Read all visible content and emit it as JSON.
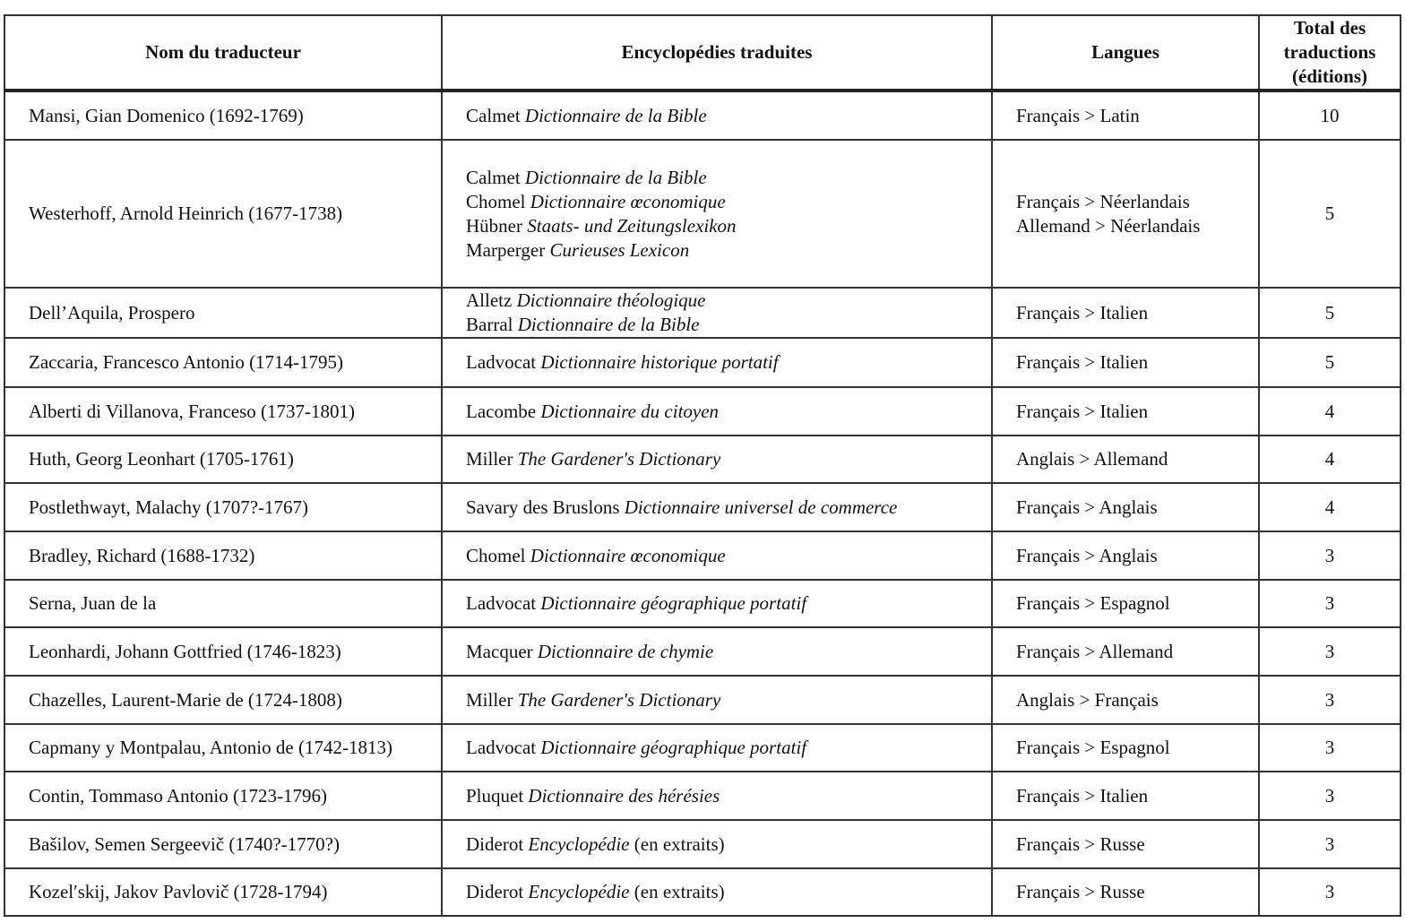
{
  "headers": {
    "name": "Nom du traducteur",
    "encyclopedias": "Encyclopédies traduites",
    "languages": "Langues",
    "total": "Total des traductions (éditions)"
  },
  "rows": [
    {
      "name": "Mansi, Gian Domenico (1692-1769)",
      "encyclopedias": [
        {
          "author": "Calmet",
          "title": "Dictionnaire de la Bible",
          "suffix": ""
        }
      ],
      "languages": [
        "Français > Latin"
      ],
      "total": "10"
    },
    {
      "name": "Westerhoff, Arnold Heinrich (1677-1738)",
      "encyclopedias": [
        {
          "author": "Calmet",
          "title": "Dictionnaire de la Bible",
          "suffix": ""
        },
        {
          "author": "Chomel",
          "title": "Dictionnaire œconomique",
          "suffix": ""
        },
        {
          "author": "Hübner",
          "title": "Staats- und Zeitungslexikon",
          "suffix": ""
        },
        {
          "author": "Marperger",
          "title": "Curieuses Lexicon",
          "suffix": ""
        }
      ],
      "languages": [
        "Français > Néerlandais",
        "Allemand > Néerlandais"
      ],
      "total": "5"
    },
    {
      "name": "Dell’Aquila, Prospero",
      "encyclopedias": [
        {
          "author": "Alletz",
          "title": "Dictionnaire théologique",
          "suffix": ""
        },
        {
          "author": "Barral",
          "title": "Dictionnaire de la Bible",
          "suffix": ""
        }
      ],
      "languages": [
        "Français > Italien"
      ],
      "total": "5"
    },
    {
      "name": "Zaccaria, Francesco Antonio (1714-1795)",
      "encyclopedias": [
        {
          "author": "Ladvocat",
          "title": "Dictionnaire historique portatif",
          "suffix": ""
        }
      ],
      "languages": [
        "Français > Italien"
      ],
      "total": "5"
    },
    {
      "name": "Alberti di Villanova, Franceso (1737-1801)",
      "encyclopedias": [
        {
          "author": "Lacombe",
          "title": "Dictionnaire du citoyen",
          "suffix": ""
        }
      ],
      "languages": [
        "Français > Italien"
      ],
      "total": "4"
    },
    {
      "name": "Huth, Georg Leonhart (1705-1761)",
      "encyclopedias": [
        {
          "author": "Miller",
          "title": "The Gardener's Dictionary",
          "suffix": ""
        }
      ],
      "languages": [
        "Anglais > Allemand"
      ],
      "total": "4"
    },
    {
      "name": "Postlethwayt, Malachy (1707?-1767)",
      "encyclopedias": [
        {
          "author": "Savary des Bruslons",
          "title": "Dictionnaire universel de commerce",
          "suffix": ""
        }
      ],
      "languages": [
        "Français > Anglais"
      ],
      "total": "4"
    },
    {
      "name": "Bradley, Richard (1688-1732)",
      "encyclopedias": [
        {
          "author": "Chomel",
          "title": "Dictionnaire œconomique",
          "suffix": ""
        }
      ],
      "languages": [
        "Français > Anglais"
      ],
      "total": "3"
    },
    {
      "name": "Serna, Juan de la",
      "encyclopedias": [
        {
          "author": "Ladvocat",
          "title": "Dictionnaire géographique portatif",
          "suffix": ""
        }
      ],
      "languages": [
        "Français > Espagnol"
      ],
      "total": "3"
    },
    {
      "name": "Leonhardi, Johann Gottfried (1746-1823)",
      "encyclopedias": [
        {
          "author": "Macquer",
          "title": "Dictionnaire de chymie",
          "suffix": ""
        }
      ],
      "languages": [
        "Français > Allemand"
      ],
      "total": "3"
    },
    {
      "name": "Chazelles, Laurent-Marie de (1724-1808)",
      "encyclopedias": [
        {
          "author": "Miller",
          "title": "The Gardener's Dictionary",
          "suffix": ""
        }
      ],
      "languages": [
        "Anglais > Français"
      ],
      "total": "3"
    },
    {
      "name": "Capmany y Montpalau, Antonio de (1742-1813)",
      "encyclopedias": [
        {
          "author": "Ladvocat",
          "title": "Dictionnaire géographique portatif",
          "suffix": ""
        }
      ],
      "languages": [
        "Français > Espagnol"
      ],
      "total": "3"
    },
    {
      "name": "Contin, Tommaso Antonio (1723-1796)",
      "encyclopedias": [
        {
          "author": "Pluquet",
          "title": "Dictionnaire des hérésies",
          "suffix": ""
        }
      ],
      "languages": [
        "Français > Italien"
      ],
      "total": "3"
    },
    {
      "name": "Bašilov, Semen Sergeevič (1740?-1770?)",
      "encyclopedias": [
        {
          "author": "Diderot",
          "title": "Encyclopédie",
          "suffix": "(en extraits)"
        }
      ],
      "languages": [
        "Français > Russe"
      ],
      "total": "3"
    },
    {
      "name": "Kozel′skij, Jakov Pavlovič (1728-1794)",
      "encyclopedias": [
        {
          "author": "Diderot",
          "title": "Encyclopédie",
          "suffix": "(en extraits)"
        }
      ],
      "languages": [
        "Français > Russe"
      ],
      "total": "3"
    }
  ]
}
